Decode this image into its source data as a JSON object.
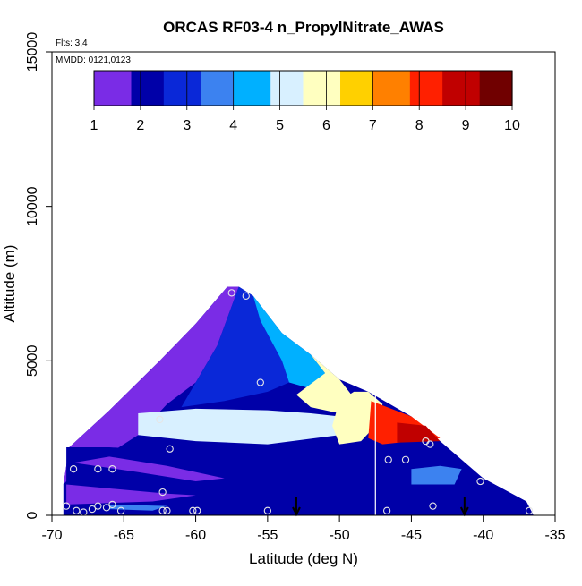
{
  "chart_data": {
    "type": "heatmap",
    "title": "ORCAS RF03-4 n_PropylNitrate_AWAS",
    "annotations": {
      "flights": "Flts: 3,4",
      "dates": "MMDD: 0121,0123"
    },
    "xlabel": "Latitude (deg N)",
    "ylabel": "Altitude (m)",
    "xlim": [
      -70,
      -35
    ],
    "ylim": [
      0,
      15000
    ],
    "x_ticks": [
      -70,
      -65,
      -60,
      -55,
      -50,
      -45,
      -40,
      -35
    ],
    "y_ticks": [
      0,
      5000,
      10000,
      15000
    ],
    "colorbar": {
      "min": 1,
      "max": 10,
      "ticks": [
        1,
        2,
        3,
        4,
        5,
        6,
        7,
        8,
        9,
        10
      ],
      "colors": [
        "#7a2ce6",
        "#0000a8",
        "#0a28d8",
        "#3c82f0",
        "#00b0ff",
        "#d8f0ff",
        "#ffffc0",
        "#ffd000",
        "#ff8000",
        "#ff2000",
        "#c00000",
        "#700000"
      ]
    },
    "field": {
      "envelope": [
        [
          -69.2,
          0
        ],
        [
          -69.2,
          1000
        ],
        [
          -68.8,
          2200
        ],
        [
          -66,
          3400
        ],
        [
          -62.5,
          5000
        ],
        [
          -60,
          6200
        ],
        [
          -57.8,
          7400
        ],
        [
          -57,
          7400
        ],
        [
          -56,
          7100
        ],
        [
          -54,
          5900
        ],
        [
          -52,
          5200
        ],
        [
          -50,
          4400
        ],
        [
          -48,
          4000
        ],
        [
          -45,
          3200
        ],
        [
          -42,
          2000
        ],
        [
          -40,
          1200
        ],
        [
          -37,
          450
        ],
        [
          -36.5,
          0
        ]
      ],
      "regions": [
        {
          "value": 1.5,
          "poly": [
            [
              -69.2,
              1000
            ],
            [
              -68.8,
              2200
            ],
            [
              -66,
              3400
            ],
            [
              -62.5,
              5000
            ],
            [
              -60,
              6200
            ],
            [
              -57.8,
              7400
            ],
            [
              -57,
              7400
            ],
            [
              -58.5,
              5500
            ],
            [
              -60,
              4300
            ],
            [
              -62,
              3600
            ],
            [
              -64,
              2600
            ],
            [
              -66,
              2000
            ],
            [
              -68,
              1600
            ]
          ]
        },
        {
          "value": 2.5,
          "poly": [
            [
              -57,
              7400
            ],
            [
              -56,
              7100
            ],
            [
              -55.5,
              6300
            ],
            [
              -54,
              5000
            ],
            [
              -53.5,
              4300
            ],
            [
              -55,
              4000
            ],
            [
              -58,
              3700
            ],
            [
              -61,
              3500
            ],
            [
              -60,
              4300
            ],
            [
              -58.5,
              5500
            ]
          ]
        },
        {
          "value": 4.5,
          "poly": [
            [
              -56,
              7100
            ],
            [
              -54,
              5900
            ],
            [
              -52,
              5200
            ],
            [
              -51,
              4600
            ],
            [
              -52,
              4100
            ],
            [
              -53.5,
              4300
            ],
            [
              -54,
              5000
            ],
            [
              -55.5,
              6300
            ]
          ]
        },
        {
          "value": 5.7,
          "poly": [
            [
              -52,
              5200
            ],
            [
              -50,
              4400
            ],
            [
              -49,
              3800
            ],
            [
              -50,
              3300
            ],
            [
              -52,
              3500
            ],
            [
              -53,
              3900
            ],
            [
              -51,
              4600
            ]
          ]
        },
        {
          "value": 4.8,
          "poly": [
            [
              -64,
              3300
            ],
            [
              -60,
              3450
            ],
            [
              -55,
              3400
            ],
            [
              -52,
              3300
            ],
            [
              -50,
              3200
            ],
            [
              -50,
              2600
            ],
            [
              -55,
              2300
            ],
            [
              -60,
              2400
            ],
            [
              -64,
              2600
            ]
          ]
        },
        {
          "value": 6.1,
          "poly": [
            [
              -50,
              3700
            ],
            [
              -49,
              4000
            ],
            [
              -48,
              4000
            ],
            [
              -47,
              3600
            ],
            [
              -47.5,
              2900
            ],
            [
              -48.5,
              2400
            ],
            [
              -50,
              2300
            ],
            [
              -50.5,
              2900
            ]
          ]
        },
        {
          "value": 8.3,
          "poly": [
            [
              -47.8,
              3700
            ],
            [
              -45,
              3200
            ],
            [
              -43,
              2500
            ],
            [
              -47,
              2300
            ],
            [
              -48,
              2500
            ]
          ]
        },
        {
          "value": 9.2,
          "poly": [
            [
              -46,
              3000
            ],
            [
              -44,
              2900
            ],
            [
              -43,
              2400
            ],
            [
              -46,
              2350
            ]
          ]
        },
        {
          "value": 2.1,
          "poly": [
            [
              -69,
              2200
            ],
            [
              -66,
              2200
            ],
            [
              -60,
              2050
            ],
            [
              -55,
              2000
            ],
            [
              -50,
              2000
            ],
            [
              -45,
              1900
            ],
            [
              -42,
              1900
            ],
            [
              -40,
              1200
            ],
            [
              -37,
              450
            ],
            [
              -50,
              500
            ],
            [
              -60,
              600
            ],
            [
              -69,
              700
            ]
          ]
        },
        {
          "value": 1.6,
          "poly": [
            [
              -68.5,
              1700
            ],
            [
              -64,
              1400
            ],
            [
              -60,
              1100
            ],
            [
              -58,
              1200
            ],
            [
              -62,
              1600
            ],
            [
              -66,
              1900
            ]
          ]
        },
        {
          "value": 1.4,
          "poly": [
            [
              -69,
              1000
            ],
            [
              -62,
              700
            ],
            [
              -60,
              650
            ],
            [
              -63,
              450
            ],
            [
              -69,
              350
            ]
          ]
        },
        {
          "value": 3.4,
          "poly": [
            [
              -45,
              1500
            ],
            [
              -43,
              1600
            ],
            [
              -41.5,
              1500
            ],
            [
              -42,
              1000
            ],
            [
              -45,
              1000
            ]
          ]
        },
        {
          "value": 3.7,
          "poly": [
            [
              -66,
              200
            ],
            [
              -63,
              150
            ],
            [
              -62,
              300
            ],
            [
              -66,
              350
            ]
          ]
        }
      ],
      "gap_line_lat": -47.5
    },
    "samples": [
      [
        -57.5,
        7200
      ],
      [
        -56.5,
        7100
      ],
      [
        -55.5,
        4300
      ],
      [
        -62.5,
        3100
      ],
      [
        -61.8,
        2150
      ],
      [
        -68.5,
        1500
      ],
      [
        -66.8,
        1500
      ],
      [
        -65.8,
        1500
      ],
      [
        -62.3,
        750
      ],
      [
        -69,
        300
      ],
      [
        -68.3,
        150
      ],
      [
        -67.8,
        100
      ],
      [
        -67.2,
        200
      ],
      [
        -66.8,
        300
      ],
      [
        -66.2,
        250
      ],
      [
        -65.8,
        350
      ],
      [
        -65.2,
        150
      ],
      [
        -62.3,
        150
      ],
      [
        -62.0,
        150
      ],
      [
        -60.2,
        150
      ],
      [
        -59.9,
        150
      ],
      [
        -55.0,
        150
      ],
      [
        -46.6,
        1800
      ],
      [
        -45.4,
        1800
      ],
      [
        -44.0,
        2400
      ],
      [
        -43.7,
        2300
      ],
      [
        -40.2,
        1100
      ],
      [
        -43.5,
        300
      ],
      [
        -46.7,
        150
      ],
      [
        -36.8,
        150
      ]
    ],
    "profile_markers": [
      -53,
      -41.3
    ]
  }
}
